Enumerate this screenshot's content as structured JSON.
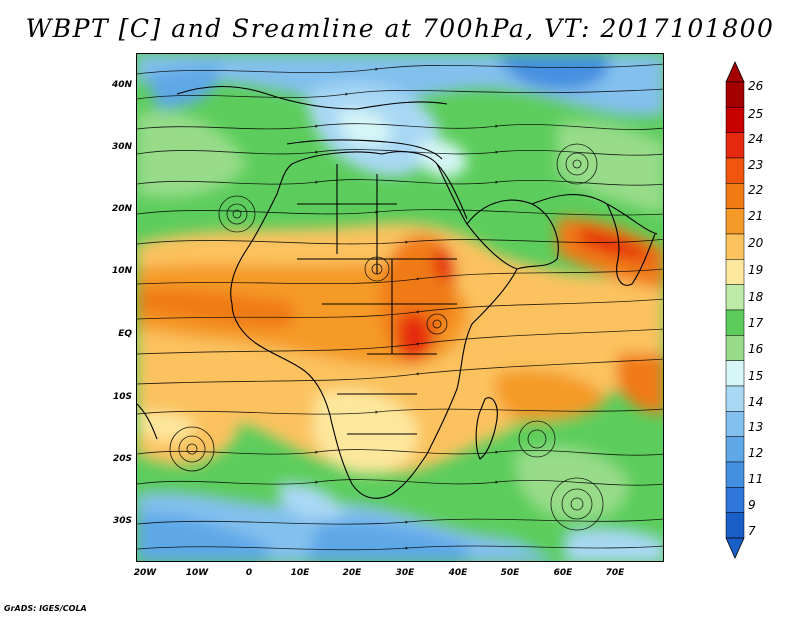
{
  "title": "WBPT [C] and Sreamline at 700hPa, VT: 2017101800",
  "credit": "GrADS: IGES/COLA",
  "lat_labels": [
    "40N",
    "30N",
    "20N",
    "10N",
    "EQ",
    "10S",
    "20S",
    "30S"
  ],
  "lon_labels": [
    "20W",
    "10W",
    "0",
    "10E",
    "20E",
    "30E",
    "40E",
    "50E",
    "60E",
    "70E"
  ],
  "colorbar": {
    "levels": [
      "26",
      "25",
      "24",
      "23",
      "22",
      "21",
      "20",
      "19",
      "18",
      "17",
      "16",
      "15",
      "14",
      "13",
      "12",
      "11",
      "9",
      "7"
    ],
    "colors": [
      "#a50000",
      "#c80000",
      "#e52a0f",
      "#f2560e",
      "#f07a14",
      "#f59a28",
      "#fbc25e",
      "#fde79c",
      "#bdeaa6",
      "#5ccd5c",
      "#98dc8a",
      "#d7f6f6",
      "#a9d8f4",
      "#83c0ee",
      "#5ea8e8",
      "#4490e0",
      "#2e76d8",
      "#1a5ec8"
    ]
  }
}
